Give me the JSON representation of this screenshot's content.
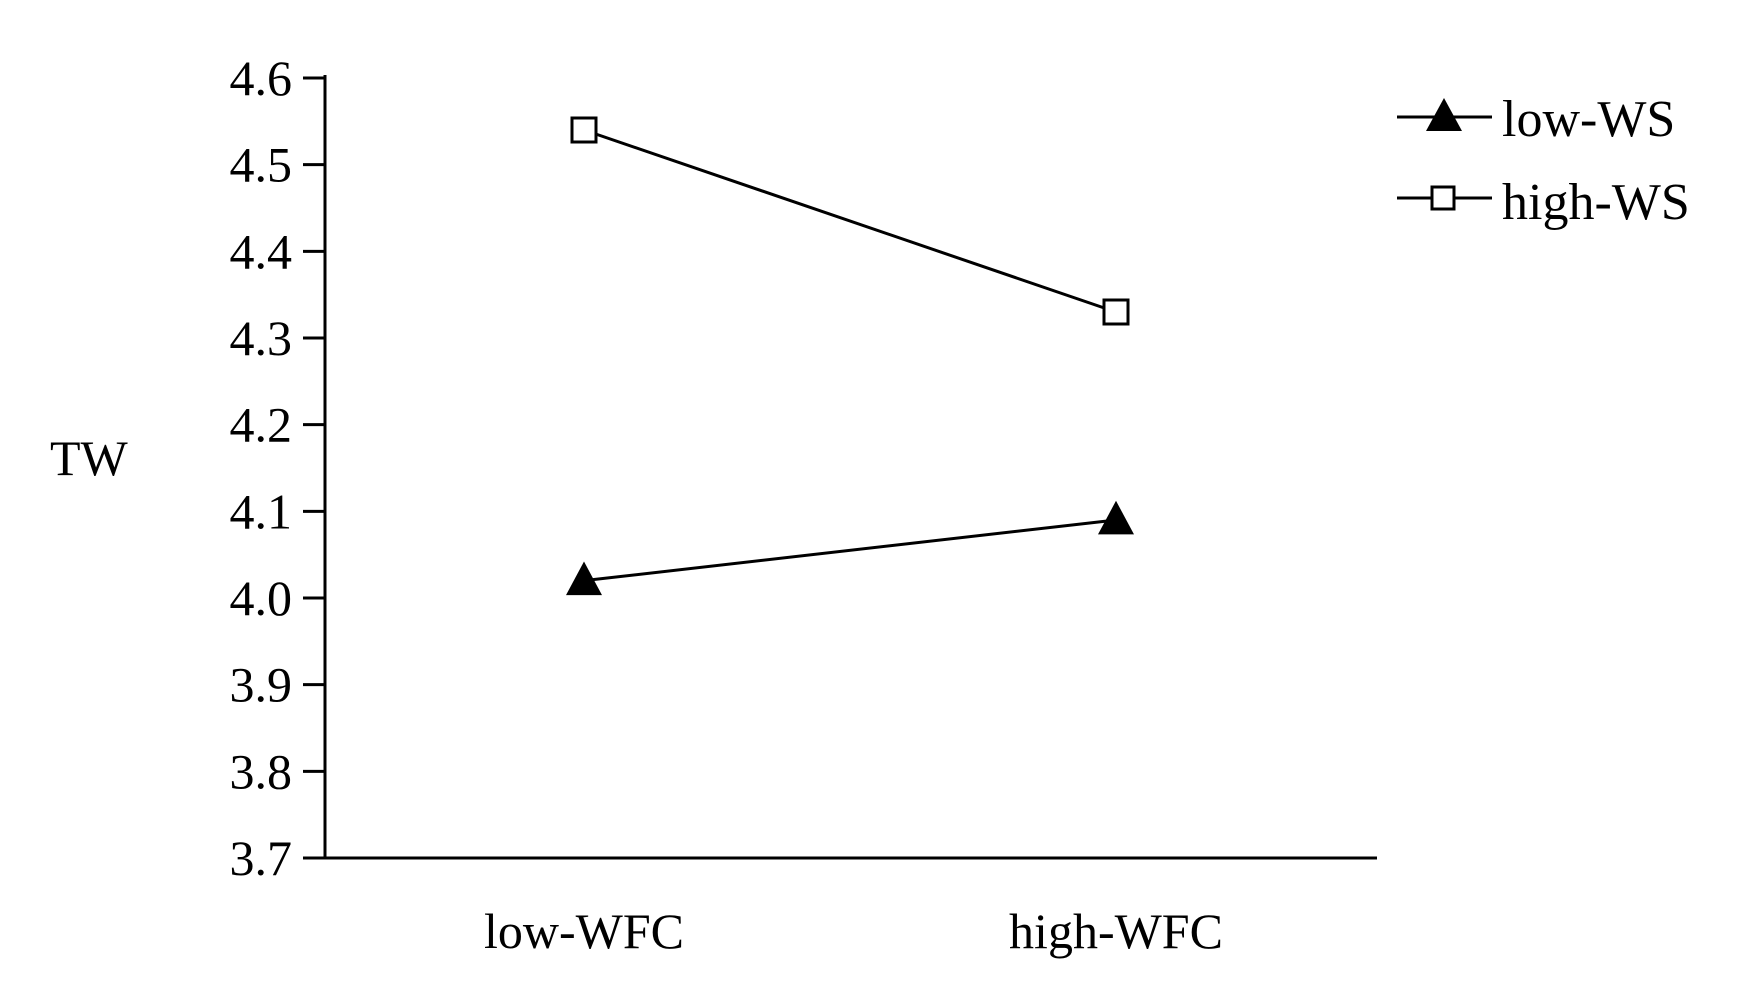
{
  "chart_data": {
    "type": "line",
    "title": "",
    "xlabel": "",
    "ylabel": "TW",
    "categories": [
      "low-WFC",
      "high-WFC"
    ],
    "ylim": [
      3.7,
      4.6
    ],
    "yticks": [
      "4.6",
      "4.5",
      "4.4",
      "4.3",
      "4.2",
      "4.1",
      "4.0",
      "3.9",
      "3.8",
      "3.7"
    ],
    "grid": false,
    "legend_position": "top-right",
    "series": [
      {
        "name": "low-WS",
        "marker": "filled-triangle",
        "color": "#000000",
        "values": [
          4.02,
          4.09
        ]
      },
      {
        "name": "high-WS",
        "marker": "open-square",
        "color": "#000000",
        "values": [
          4.54,
          4.33
        ]
      }
    ]
  }
}
